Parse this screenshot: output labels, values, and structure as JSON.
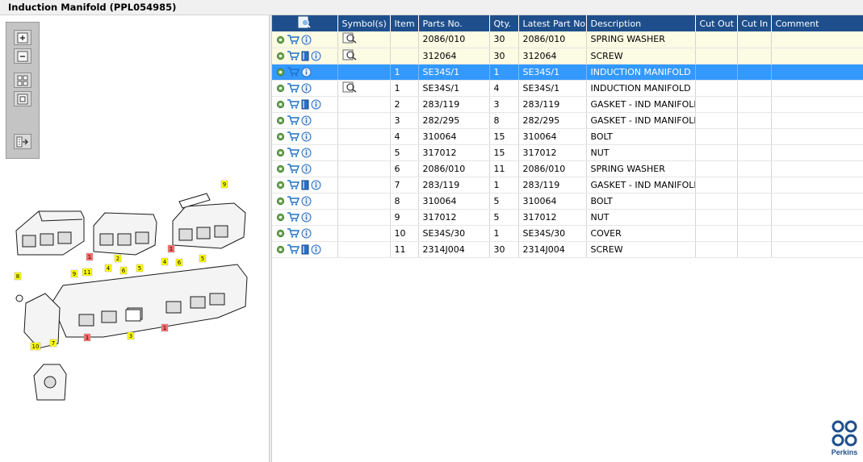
{
  "window": {
    "title": "Induction Manifold (PPL054985)"
  },
  "toolbar": {
    "buttons": [
      {
        "name": "zoom-in",
        "icon": "zoom-in-icon"
      },
      {
        "name": "zoom-out",
        "icon": "zoom-out-icon"
      },
      {
        "name": "fit-all",
        "icon": "fit-all-icon"
      },
      {
        "name": "fit-window",
        "icon": "fit-window-icon"
      },
      {
        "name": "export",
        "icon": "export-icon"
      }
    ]
  },
  "drawing": {
    "callouts": [
      "9",
      "1",
      "1",
      "8",
      "9",
      "11",
      "4",
      "2",
      "6",
      "5",
      "4",
      "6",
      "5",
      "1",
      "3",
      "1",
      "10",
      "7"
    ]
  },
  "table": {
    "columns": [
      "",
      "Symbol(s)",
      "Item",
      "Parts No.",
      "Qty.",
      "Latest Part No.",
      "Description",
      "Cut Out",
      "Cut In",
      "Comment"
    ],
    "rows": [
      {
        "style": "yellow",
        "book": false,
        "symbol": true,
        "item": "",
        "parts_no": "2086/010",
        "qty": "30",
        "latest": "2086/010",
        "desc": "SPRING WASHER"
      },
      {
        "style": "yellow",
        "book": true,
        "symbol": true,
        "item": "",
        "parts_no": "312064",
        "qty": "30",
        "latest": "312064",
        "desc": "SCREW"
      },
      {
        "style": "selected",
        "book": false,
        "symbol": false,
        "item": "1",
        "parts_no": "SE34S/1",
        "qty": "1",
        "latest": "SE34S/1",
        "desc": "INDUCTION MANIFOLD"
      },
      {
        "style": "",
        "book": false,
        "symbol": true,
        "item": "1",
        "parts_no": "SE34S/1",
        "qty": "4",
        "latest": "SE34S/1",
        "desc": "INDUCTION MANIFOLD"
      },
      {
        "style": "",
        "book": true,
        "symbol": false,
        "item": "2",
        "parts_no": "283/119",
        "qty": "3",
        "latest": "283/119",
        "desc": "GASKET - IND MANIFOLD"
      },
      {
        "style": "",
        "book": false,
        "symbol": false,
        "item": "3",
        "parts_no": "282/295",
        "qty": "8",
        "latest": "282/295",
        "desc": "GASKET - IND MANIFOLD"
      },
      {
        "style": "",
        "book": false,
        "symbol": false,
        "item": "4",
        "parts_no": "310064",
        "qty": "15",
        "latest": "310064",
        "desc": "BOLT"
      },
      {
        "style": "",
        "book": false,
        "symbol": false,
        "item": "5",
        "parts_no": "317012",
        "qty": "15",
        "latest": "317012",
        "desc": "NUT"
      },
      {
        "style": "",
        "book": false,
        "symbol": false,
        "item": "6",
        "parts_no": "2086/010",
        "qty": "11",
        "latest": "2086/010",
        "desc": "SPRING WASHER"
      },
      {
        "style": "",
        "book": true,
        "symbol": false,
        "item": "7",
        "parts_no": "283/119",
        "qty": "1",
        "latest": "283/119",
        "desc": "GASKET - IND MANIFOLD"
      },
      {
        "style": "",
        "book": false,
        "symbol": false,
        "item": "8",
        "parts_no": "310064",
        "qty": "5",
        "latest": "310064",
        "desc": "BOLT"
      },
      {
        "style": "",
        "book": false,
        "symbol": false,
        "item": "9",
        "parts_no": "317012",
        "qty": "5",
        "latest": "317012",
        "desc": "NUT"
      },
      {
        "style": "",
        "book": false,
        "symbol": false,
        "item": "10",
        "parts_no": "SE34S/30",
        "qty": "1",
        "latest": "SE34S/30",
        "desc": "COVER"
      },
      {
        "style": "",
        "book": true,
        "symbol": false,
        "item": "11",
        "parts_no": "2314J004",
        "qty": "30",
        "latest": "2314J004",
        "desc": "SCREW"
      }
    ]
  },
  "brand": {
    "name": "Perkins",
    "color": "#1e4f8c"
  }
}
